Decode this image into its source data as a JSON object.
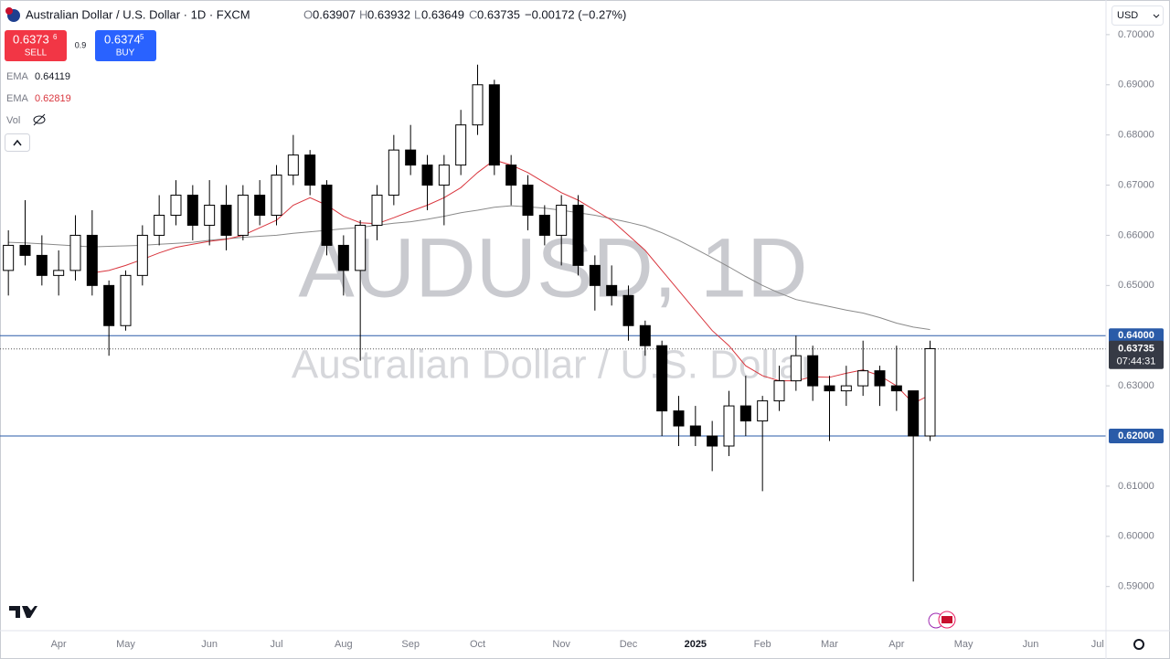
{
  "header": {
    "symbol_title": "Australian Dollar / U.S. Dollar · 1D · FXCM",
    "open_label": "O",
    "open": "0.63907",
    "high_label": "H",
    "high": "0.63932",
    "low_label": "L",
    "low": "0.63649",
    "close_label": "C",
    "close": "0.63735",
    "change": "−0.00172 (−0.27%)"
  },
  "toolbar": {
    "sell_price": "0.6373",
    "sell_pip": "6",
    "sell_label": "SELL",
    "spread": "0.9",
    "buy_price": "0.6374",
    "buy_pip": "5",
    "buy_label": "BUY",
    "vol_label": "Vol",
    "currency": "USD"
  },
  "chart_data": {
    "type": "candlestick",
    "watermark": "AUDUSD, 1D",
    "watermark_subtitle": "Australian Dollar / U.S. Dollar",
    "categories": [
      null,
      null,
      null,
      "Apr",
      null,
      null,
      null,
      "May",
      null,
      null,
      null,
      null,
      "Jun",
      null,
      null,
      null,
      "Jul",
      null,
      null,
      null,
      "Aug",
      null,
      null,
      null,
      "Sep",
      null,
      null,
      null,
      "Oct",
      null,
      null,
      null,
      null,
      "Nov",
      null,
      null,
      null,
      "Dec",
      null,
      null,
      null,
      "2025",
      null,
      null,
      null,
      "Feb",
      null,
      null,
      null,
      "Mar",
      null,
      null,
      null,
      "Apr",
      null,
      null,
      null,
      "May",
      null,
      null,
      null,
      "Jun",
      null,
      null,
      null,
      "Jul"
    ],
    "series": [
      {
        "name": "AUDUSD",
        "up_color": "#ffffff",
        "down_color": "#000000",
        "edge_color": "#000000",
        "open": [
          0.653,
          0.658,
          0.656,
          0.652,
          0.653,
          0.66,
          0.65,
          0.642,
          0.652,
          0.66,
          0.664,
          0.668,
          0.662,
          0.666,
          0.66,
          0.668,
          0.664,
          0.672,
          0.676,
          0.67,
          0.658,
          0.653,
          0.662,
          0.668,
          0.677,
          0.674,
          0.67,
          0.674,
          0.682,
          0.69,
          0.674,
          0.67,
          0.664,
          0.66,
          0.666,
          0.654,
          0.65,
          0.648,
          0.642,
          0.638,
          0.625,
          0.622,
          0.62,
          0.618,
          0.626,
          0.623,
          0.627,
          0.631,
          0.636,
          0.63,
          0.629,
          0.63,
          0.633,
          0.63,
          0.629,
          0.62,
          null,
          null,
          null,
          null,
          null,
          null,
          null,
          null,
          null,
          null
        ],
        "high": [
          0.661,
          0.667,
          0.66,
          0.657,
          0.664,
          0.665,
          0.651,
          0.653,
          0.662,
          0.668,
          0.671,
          0.67,
          0.671,
          0.67,
          0.67,
          0.671,
          0.674,
          0.68,
          0.677,
          0.671,
          0.66,
          0.663,
          0.67,
          0.68,
          0.682,
          0.676,
          0.676,
          0.685,
          0.694,
          0.691,
          0.676,
          0.672,
          0.666,
          0.668,
          0.668,
          0.656,
          0.654,
          0.65,
          0.643,
          0.639,
          0.628,
          0.626,
          0.623,
          0.629,
          0.632,
          0.628,
          0.634,
          0.64,
          0.638,
          0.632,
          0.634,
          0.639,
          0.634,
          0.638,
          0.629,
          0.639,
          null,
          null,
          null,
          null,
          null,
          null,
          null,
          null,
          null,
          null
        ],
        "low": [
          0.648,
          0.654,
          0.65,
          0.648,
          0.651,
          0.648,
          0.636,
          0.641,
          0.65,
          0.658,
          0.662,
          0.659,
          0.658,
          0.657,
          0.659,
          0.662,
          0.662,
          0.67,
          0.668,
          0.656,
          0.648,
          0.635,
          0.659,
          0.666,
          0.672,
          0.665,
          0.662,
          0.672,
          0.68,
          0.672,
          0.666,
          0.661,
          0.658,
          0.654,
          0.652,
          0.645,
          0.646,
          0.639,
          0.636,
          0.62,
          0.618,
          0.618,
          0.613,
          0.616,
          0.62,
          0.609,
          0.625,
          0.629,
          0.627,
          0.619,
          0.626,
          0.628,
          0.626,
          0.625,
          0.591,
          0.619,
          null,
          null,
          null,
          null,
          null,
          null,
          null,
          null,
          null,
          null
        ],
        "close": [
          0.658,
          0.656,
          0.652,
          0.653,
          0.66,
          0.65,
          0.642,
          0.652,
          0.66,
          0.664,
          0.668,
          0.662,
          0.666,
          0.66,
          0.668,
          0.664,
          0.672,
          0.676,
          0.67,
          0.658,
          0.653,
          0.662,
          0.668,
          0.677,
          0.674,
          0.67,
          0.674,
          0.682,
          0.69,
          0.674,
          0.67,
          0.664,
          0.66,
          0.666,
          0.654,
          0.65,
          0.648,
          0.642,
          0.638,
          0.625,
          0.622,
          0.62,
          0.618,
          0.626,
          0.623,
          0.627,
          0.631,
          0.636,
          0.63,
          0.629,
          0.63,
          0.633,
          0.63,
          0.629,
          0.62,
          0.6374,
          null,
          null,
          null,
          null,
          null,
          null,
          null,
          null,
          null,
          null
        ]
      }
    ],
    "lines": [
      {
        "name": "EMA",
        "color": "#8a8a8a",
        "value_label": "0.64119",
        "values": [
          0.6586,
          0.6585,
          0.6583,
          0.6581,
          0.6579,
          0.6577,
          0.6578,
          0.6579,
          0.658,
          0.6582,
          0.6584,
          0.6586,
          0.659,
          0.6593,
          0.6596,
          0.6598,
          0.66,
          0.6604,
          0.6607,
          0.661,
          0.6613,
          0.6616,
          0.662,
          0.6624,
          0.6627,
          0.6632,
          0.6638,
          0.6645,
          0.665,
          0.6656,
          0.6659,
          0.6657,
          0.6654,
          0.665,
          0.6645,
          0.664,
          0.6633,
          0.6626,
          0.6618,
          0.6605,
          0.659,
          0.6573,
          0.6555,
          0.6537,
          0.6518,
          0.65,
          0.6485,
          0.6472,
          0.6465,
          0.6458,
          0.6451,
          0.6445,
          0.6436,
          0.6425,
          0.6417,
          0.6412,
          null,
          null,
          null,
          null,
          null,
          null,
          null,
          null,
          null,
          null
        ]
      },
      {
        "name": "EMA",
        "color": "#d9363e",
        "value_label": "0.62819",
        "values": [
          null,
          null,
          null,
          null,
          null,
          0.6525,
          0.653,
          0.654,
          0.6552,
          0.6565,
          0.6576,
          0.6582,
          0.6588,
          0.6592,
          0.66,
          0.6615,
          0.663,
          0.666,
          0.6675,
          0.666,
          0.6638,
          0.6625,
          0.6623,
          0.6635,
          0.6648,
          0.666,
          0.6675,
          0.6695,
          0.6725,
          0.675,
          0.674,
          0.6725,
          0.6705,
          0.6685,
          0.667,
          0.665,
          0.663,
          0.66,
          0.657,
          0.653,
          0.649,
          0.645,
          0.641,
          0.638,
          0.634,
          0.632,
          0.631,
          0.631,
          0.6318,
          0.6317,
          0.6325,
          0.6332,
          0.632,
          0.63,
          0.6265,
          0.6282,
          null,
          null,
          null,
          null,
          null,
          null,
          null,
          null,
          null,
          null
        ]
      }
    ],
    "ylim": [
      0.5812,
      0.7069
    ],
    "yticks": [
      {
        "value": 0.7,
        "label": "0.70000"
      },
      {
        "value": 0.69,
        "label": "0.69000"
      },
      {
        "value": 0.68,
        "label": "0.68000"
      },
      {
        "value": 0.67,
        "label": "0.67000"
      },
      {
        "value": 0.66,
        "label": "0.66000"
      },
      {
        "value": 0.65,
        "label": "0.65000"
      },
      {
        "value": 0.63,
        "label": "0.63000"
      },
      {
        "value": 0.61,
        "label": "0.61000"
      },
      {
        "value": 0.6,
        "label": "0.60000"
      },
      {
        "value": 0.59,
        "label": "0.59000"
      }
    ],
    "hlines": [
      {
        "value": 0.64,
        "label": "0.64000",
        "color": "#2a5ba8"
      },
      {
        "value": 0.62,
        "label": "0.62000",
        "color": "#2a5ba8"
      }
    ],
    "last_price": {
      "value": 0.63735,
      "label": "0.63735",
      "countdown": "07:44:31",
      "color": "#363a45"
    },
    "grid": false
  }
}
